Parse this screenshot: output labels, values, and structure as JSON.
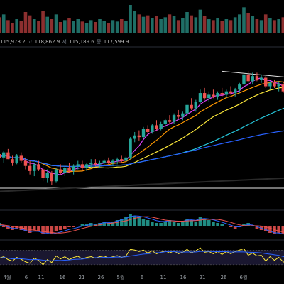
{
  "ohlc_readout": {
    "open_text": "115,973.2",
    "high_label": "고",
    "high_value": "118,862.9",
    "low_label": "저",
    "low_value": "115,189.6",
    "close_label": "종",
    "close_value": "117,599.9"
  },
  "time_axis": {
    "labels": [
      "4월",
      "6",
      "11",
      "16",
      "21",
      "26",
      "5월",
      "6",
      "11",
      "16",
      "21",
      "26",
      "6월"
    ]
  },
  "colors": {
    "up": "#26a69a",
    "down": "#ef5350",
    "ma_magenta": "#e040fb",
    "ma_orange": "#ff9800",
    "ma_yellow": "#ffeb3b",
    "ma_teal": "#26c6da",
    "ma_blue": "#2962ff",
    "ma_black": "#111111",
    "macd_line": "#2962ff",
    "signal_line": "#ef5350",
    "rsi_line": "#ffeb3b"
  },
  "chart_data": {
    "type": "candlestick",
    "candles": [
      {
        "o": 62,
        "h": 66,
        "l": 58,
        "c": 60
      },
      {
        "o": 60,
        "h": 64,
        "l": 57,
        "c": 63
      },
      {
        "o": 63,
        "h": 65,
        "l": 59,
        "c": 59
      },
      {
        "o": 59,
        "h": 61,
        "l": 55,
        "c": 57
      },
      {
        "o": 57,
        "h": 62,
        "l": 56,
        "c": 61
      },
      {
        "o": 61,
        "h": 63,
        "l": 57,
        "c": 58
      },
      {
        "o": 58,
        "h": 60,
        "l": 53,
        "c": 55
      },
      {
        "o": 55,
        "h": 58,
        "l": 50,
        "c": 52
      },
      {
        "o": 52,
        "h": 57,
        "l": 49,
        "c": 56
      },
      {
        "o": 56,
        "h": 58,
        "l": 52,
        "c": 53
      },
      {
        "o": 53,
        "h": 55,
        "l": 46,
        "c": 48
      },
      {
        "o": 48,
        "h": 53,
        "l": 45,
        "c": 51
      },
      {
        "o": 51,
        "h": 52,
        "l": 44,
        "c": 46
      },
      {
        "o": 46,
        "h": 54,
        "l": 45,
        "c": 53
      },
      {
        "o": 53,
        "h": 56,
        "l": 50,
        "c": 51
      },
      {
        "o": 51,
        "h": 55,
        "l": 49,
        "c": 54
      },
      {
        "o": 54,
        "h": 57,
        "l": 51,
        "c": 52
      },
      {
        "o": 52,
        "h": 56,
        "l": 50,
        "c": 55
      },
      {
        "o": 55,
        "h": 58,
        "l": 53,
        "c": 56
      },
      {
        "o": 56,
        "h": 58,
        "l": 52,
        "c": 54
      },
      {
        "o": 54,
        "h": 57,
        "l": 52,
        "c": 56
      },
      {
        "o": 56,
        "h": 59,
        "l": 54,
        "c": 57
      },
      {
        "o": 57,
        "h": 59,
        "l": 55,
        "c": 56
      },
      {
        "o": 56,
        "h": 58,
        "l": 54,
        "c": 57
      },
      {
        "o": 57,
        "h": 59,
        "l": 55,
        "c": 58
      },
      {
        "o": 58,
        "h": 60,
        "l": 56,
        "c": 57
      },
      {
        "o": 57,
        "h": 59,
        "l": 55,
        "c": 58
      },
      {
        "o": 58,
        "h": 60,
        "l": 56,
        "c": 59
      },
      {
        "o": 59,
        "h": 61,
        "l": 57,
        "c": 58
      },
      {
        "o": 58,
        "h": 61,
        "l": 57,
        "c": 60
      },
      {
        "o": 60,
        "h": 72,
        "l": 59,
        "c": 71
      },
      {
        "o": 71,
        "h": 75,
        "l": 69,
        "c": 73
      },
      {
        "o": 73,
        "h": 76,
        "l": 70,
        "c": 72
      },
      {
        "o": 72,
        "h": 78,
        "l": 71,
        "c": 77
      },
      {
        "o": 77,
        "h": 79,
        "l": 74,
        "c": 75
      },
      {
        "o": 75,
        "h": 80,
        "l": 74,
        "c": 79
      },
      {
        "o": 79,
        "h": 82,
        "l": 76,
        "c": 77
      },
      {
        "o": 77,
        "h": 81,
        "l": 76,
        "c": 80
      },
      {
        "o": 80,
        "h": 83,
        "l": 78,
        "c": 82
      },
      {
        "o": 82,
        "h": 85,
        "l": 80,
        "c": 81
      },
      {
        "o": 81,
        "h": 86,
        "l": 80,
        "c": 85
      },
      {
        "o": 85,
        "h": 88,
        "l": 83,
        "c": 84
      },
      {
        "o": 84,
        "h": 87,
        "l": 82,
        "c": 86
      },
      {
        "o": 86,
        "h": 92,
        "l": 85,
        "c": 91
      },
      {
        "o": 91,
        "h": 95,
        "l": 88,
        "c": 89
      },
      {
        "o": 89,
        "h": 94,
        "l": 87,
        "c": 93
      },
      {
        "o": 93,
        "h": 100,
        "l": 92,
        "c": 98
      },
      {
        "o": 98,
        "h": 101,
        "l": 94,
        "c": 95
      },
      {
        "o": 95,
        "h": 99,
        "l": 93,
        "c": 97
      },
      {
        "o": 97,
        "h": 100,
        "l": 95,
        "c": 96
      },
      {
        "o": 96,
        "h": 99,
        "l": 94,
        "c": 98
      },
      {
        "o": 98,
        "h": 101,
        "l": 96,
        "c": 97
      },
      {
        "o": 97,
        "h": 100,
        "l": 95,
        "c": 99
      },
      {
        "o": 99,
        "h": 102,
        "l": 97,
        "c": 98
      },
      {
        "o": 98,
        "h": 101,
        "l": 96,
        "c": 100
      },
      {
        "o": 100,
        "h": 104,
        "l": 98,
        "c": 103
      },
      {
        "o": 103,
        "h": 110,
        "l": 102,
        "c": 109
      },
      {
        "o": 109,
        "h": 111,
        "l": 104,
        "c": 105
      },
      {
        "o": 105,
        "h": 110,
        "l": 103,
        "c": 108
      },
      {
        "o": 108,
        "h": 110,
        "l": 105,
        "c": 106
      },
      {
        "o": 106,
        "h": 109,
        "l": 104,
        "c": 107
      },
      {
        "o": 107,
        "h": 108,
        "l": 101,
        "c": 102
      },
      {
        "o": 102,
        "h": 105,
        "l": 100,
        "c": 104
      },
      {
        "o": 104,
        "h": 106,
        "l": 101,
        "c": 102
      },
      {
        "o": 102,
        "h": 105,
        "l": 99,
        "c": 103
      },
      {
        "o": 103,
        "h": 105,
        "l": 98,
        "c": 99
      },
      {
        "o": 99,
        "h": 102,
        "l": 96,
        "c": 97
      }
    ],
    "volume": [
      34,
      40,
      28,
      22,
      30,
      26,
      45,
      38,
      30,
      26,
      48,
      35,
      30,
      40,
      24,
      28,
      32,
      26,
      30,
      25,
      22,
      28,
      24,
      30,
      26,
      22,
      28,
      25,
      30,
      26,
      60,
      48,
      40,
      35,
      38,
      32,
      36,
      30,
      34,
      40,
      36,
      28,
      32,
      45,
      38,
      34,
      50,
      36,
      30,
      28,
      32,
      26,
      30,
      28,
      34,
      40,
      55,
      42,
      36,
      30,
      28,
      40,
      32,
      28,
      30,
      34,
      36
    ],
    "macd_hist": [
      2,
      -1,
      -2,
      -3,
      -2,
      -3,
      -4,
      -5,
      -3,
      -4,
      -6,
      -5,
      -6,
      -4,
      -3,
      -2,
      -1,
      -1,
      0,
      1,
      1,
      2,
      1,
      2,
      3,
      2,
      3,
      4,
      5,
      6,
      8,
      7,
      6,
      5,
      4,
      3,
      2,
      2,
      3,
      4,
      3,
      2,
      3,
      5,
      4,
      3,
      6,
      5,
      4,
      3,
      2,
      1,
      0,
      -1,
      -2,
      -1,
      1,
      2,
      0,
      -2,
      -3,
      -4,
      -5,
      -6,
      -5,
      -6,
      -7
    ],
    "rsi": [
      48,
      52,
      44,
      40,
      50,
      45,
      38,
      34,
      48,
      42,
      30,
      44,
      36,
      54,
      46,
      52,
      44,
      50,
      53,
      46,
      50,
      52,
      48,
      52,
      54,
      48,
      52,
      55,
      50,
      54,
      72,
      70,
      66,
      70,
      62,
      68,
      60,
      64,
      68,
      62,
      68,
      60,
      64,
      72,
      62,
      68,
      76,
      64,
      66,
      60,
      66,
      58,
      66,
      60,
      66,
      70,
      74,
      56,
      62,
      54,
      56,
      40,
      52,
      42,
      50,
      38,
      34
    ]
  }
}
